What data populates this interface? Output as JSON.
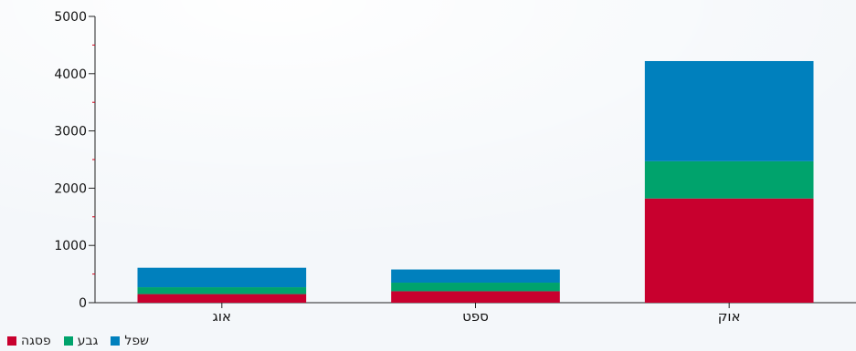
{
  "chart_data": {
    "type": "bar",
    "stacked": true,
    "categories": [
      "אוג",
      "ספט",
      "אוק"
    ],
    "series": [
      {
        "name": "פסגה",
        "color": "#c8002e",
        "values": [
          150,
          200,
          1820
        ]
      },
      {
        "name": "גבע",
        "color": "#00a36c",
        "values": [
          120,
          150,
          650
        ]
      },
      {
        "name": "שפל",
        "color": "#0080bd",
        "values": [
          340,
          230,
          1750
        ]
      }
    ],
    "yticks": [
      "0",
      "1000",
      "2000",
      "3000",
      "4000",
      "5000"
    ],
    "ylim": [
      0,
      5000
    ],
    "legend_position": "bottom-left",
    "grid": false
  }
}
